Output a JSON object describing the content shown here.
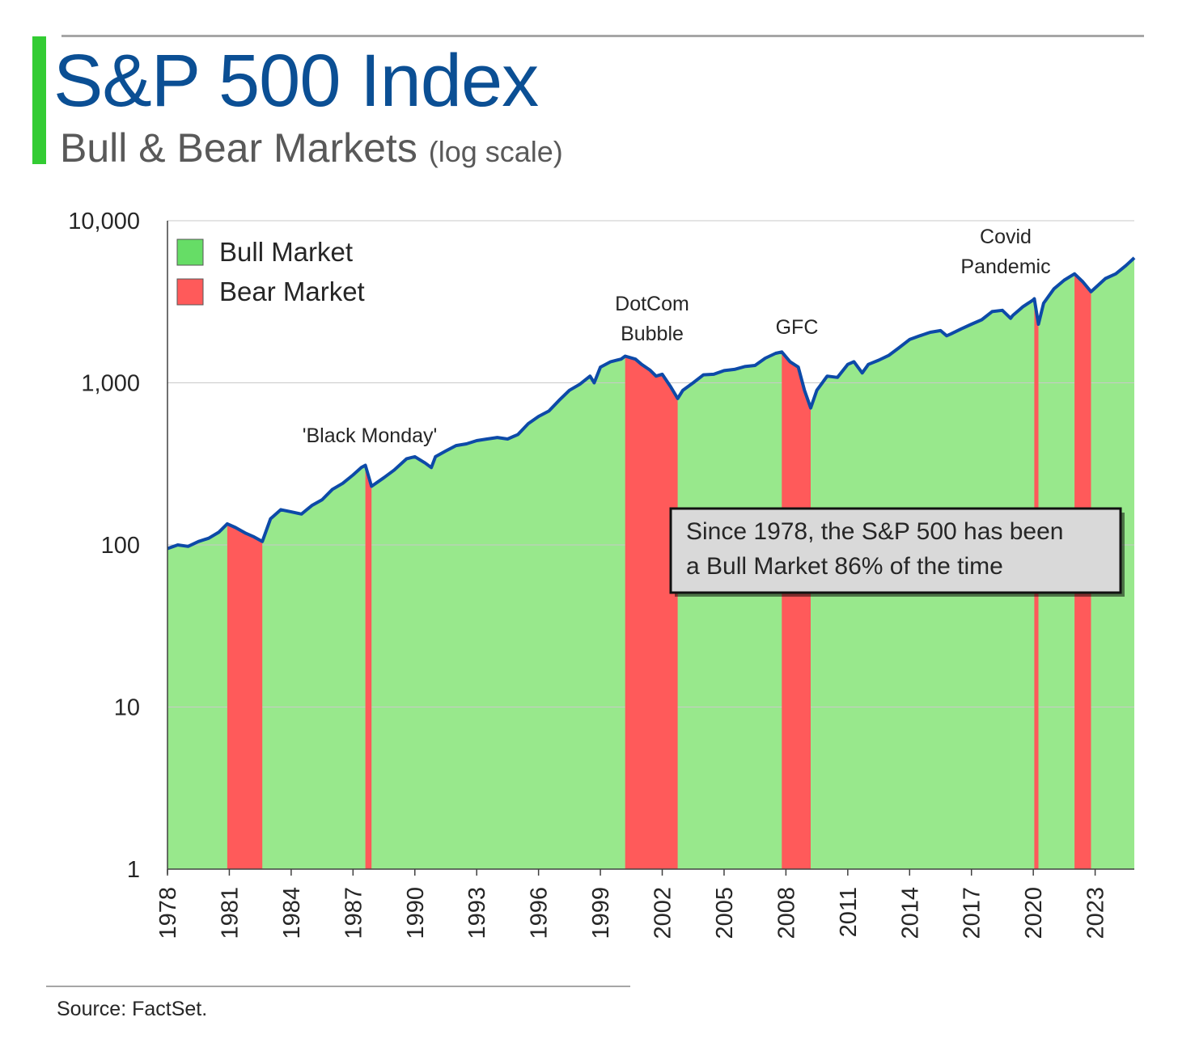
{
  "header": {
    "title": "S&P 500 Index",
    "subtitle": "Bull & Bear Markets",
    "subtitle_note": "(log scale)"
  },
  "source": "Source: FactSet.",
  "colors": {
    "accent_bar": "#33cc33",
    "title": "#0b4f94",
    "bull_fill": "#98e88c",
    "bull_legend": "#66dd66",
    "bear_fill": "#ff5a5a",
    "line": "#0d4aa8",
    "callout_bg": "#d9d9d9"
  },
  "chart_data": {
    "type": "area",
    "title": "S&P 500 Index",
    "subtitle": "Bull & Bear Markets (log scale)",
    "yscale": "log",
    "ylim": [
      1,
      10000
    ],
    "xlim": [
      1978.0,
      2024.9
    ],
    "ytick_labels": [
      {
        "value": 1,
        "label": "1"
      },
      {
        "value": 10,
        "label": "10"
      },
      {
        "value": 100,
        "label": "100"
      },
      {
        "value": 1000,
        "label": "1,000"
      },
      {
        "value": 10000,
        "label": "10,000"
      }
    ],
    "xtick_labels": [
      1978,
      1981,
      1984,
      1987,
      1990,
      1993,
      1996,
      1999,
      2002,
      2005,
      2008,
      2011,
      2014,
      2017,
      2020,
      2023
    ],
    "grid": true,
    "legend": {
      "placement": "top-left",
      "entries": [
        {
          "label": "Bull Market",
          "color": "#66dd66"
        },
        {
          "label": "Bear Market",
          "color": "#ff5a5a"
        }
      ]
    },
    "bear_markets": [
      {
        "start": 1980.9,
        "end": 1982.6
      },
      {
        "start": 1987.6,
        "end": 1987.9
      },
      {
        "start": 2000.2,
        "end": 2002.75
      },
      {
        "start": 2007.8,
        "end": 2009.2
      },
      {
        "start": 2020.05,
        "end": 2020.25
      },
      {
        "start": 2022.0,
        "end": 2022.8
      }
    ],
    "annotations": [
      {
        "text": "'Black Monday'",
        "x": 1987.7
      },
      {
        "text": "DotCom Bubble",
        "x": 2001.5
      },
      {
        "text": "GFC",
        "x": 2008.5
      },
      {
        "text": "Covid Pandemic",
        "x": 2020.7
      }
    ],
    "callout": "Since 1978, the S&P 500 has been a Bull Market 86% of the time",
    "series": [
      {
        "x": [
          1978.0,
          1978.5,
          1979.0,
          1979.5,
          1980.0,
          1980.5,
          1980.9,
          1981.3,
          1981.8,
          1982.2,
          1982.6,
          1983.0,
          1983.5,
          1984.0,
          1984.5,
          1985.0,
          1985.5,
          1986.0,
          1986.5,
          1987.0,
          1987.4,
          1987.6,
          1987.9,
          1988.5,
          1989.0,
          1989.6,
          1990.0,
          1990.5,
          1990.8,
          1991.0,
          1991.5,
          1992.0,
          1992.5,
          1993.0,
          1993.5,
          1994.0,
          1994.5,
          1995.0,
          1995.5,
          1996.0,
          1996.5,
          1997.0,
          1997.5,
          1998.0,
          1998.5,
          1998.7,
          1999.0,
          1999.5,
          2000.0,
          2000.2,
          2000.7,
          2001.0,
          2001.4,
          2001.7,
          2002.0,
          2002.4,
          2002.75,
          2003.0,
          2003.5,
          2004.0,
          2004.5,
          2005.0,
          2005.5,
          2006.0,
          2006.5,
          2007.0,
          2007.5,
          2007.8,
          2008.2,
          2008.6,
          2008.9,
          2009.2,
          2009.5,
          2010.0,
          2010.5,
          2011.0,
          2011.3,
          2011.7,
          2012.0,
          2012.5,
          2013.0,
          2013.5,
          2014.0,
          2014.5,
          2015.0,
          2015.5,
          2015.8,
          2016.0,
          2016.5,
          2017.0,
          2017.5,
          2018.0,
          2018.5,
          2018.9,
          2019.0,
          2019.5,
          2020.0,
          2020.05,
          2020.25,
          2020.5,
          2021.0,
          2021.5,
          2022.0,
          2022.4,
          2022.8,
          2023.0,
          2023.5,
          2024.0,
          2024.5,
          2024.9
        ],
        "values": [
          95,
          100,
          98,
          105,
          110,
          120,
          135,
          128,
          118,
          112,
          105,
          145,
          165,
          160,
          155,
          175,
          190,
          220,
          240,
          270,
          300,
          310,
          230,
          260,
          290,
          340,
          350,
          320,
          300,
          350,
          380,
          410,
          420,
          440,
          450,
          460,
          450,
          480,
          560,
          620,
          670,
          780,
          900,
          980,
          1100,
          1000,
          1250,
          1350,
          1400,
          1460,
          1400,
          1300,
          1200,
          1100,
          1130,
          950,
          800,
          900,
          1000,
          1120,
          1130,
          1190,
          1210,
          1260,
          1280,
          1420,
          1520,
          1550,
          1350,
          1250,
          900,
          700,
          900,
          1100,
          1080,
          1300,
          1350,
          1150,
          1300,
          1380,
          1480,
          1650,
          1850,
          1950,
          2050,
          2100,
          1950,
          2000,
          2150,
          2300,
          2450,
          2750,
          2800,
          2500,
          2600,
          2950,
          3250,
          3300,
          2300,
          3100,
          3800,
          4300,
          4700,
          4200,
          3650,
          3850,
          4400,
          4700,
          5300,
          5900
        ]
      }
    ]
  }
}
